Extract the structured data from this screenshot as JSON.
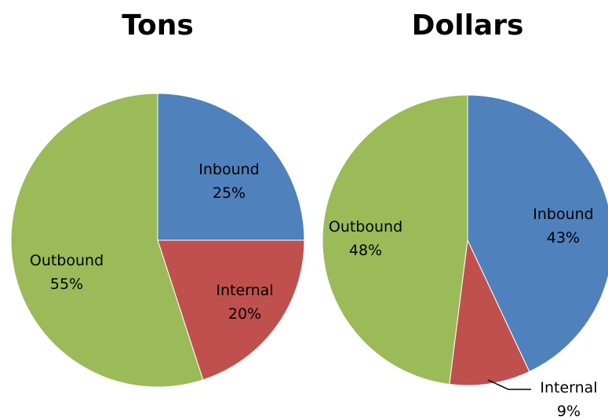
{
  "chart_data": [
    {
      "type": "pie",
      "title": "Tons",
      "categories": [
        "Inbound",
        "Internal",
        "Outbound"
      ],
      "values": [
        25,
        20,
        55
      ],
      "labels": [
        "25%",
        "20%",
        "55%"
      ],
      "colors": [
        "#4F81BD",
        "#C0504D",
        "#9BBB59"
      ]
    },
    {
      "type": "pie",
      "title": "Dollars",
      "categories": [
        "Inbound",
        "Internal",
        "Outbound"
      ],
      "values": [
        43,
        9,
        48
      ],
      "labels": [
        "43%",
        "9%",
        "48%"
      ],
      "colors": [
        "#4F81BD",
        "#C0504D",
        "#9BBB59"
      ]
    }
  ]
}
